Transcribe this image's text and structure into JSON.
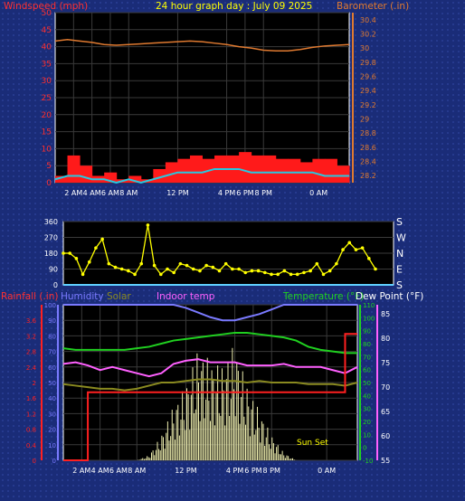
{
  "colors": {
    "wind_avg": "#28c8e0",
    "wind_gust": "#ff1a1a",
    "barometer": "#e07a30",
    "direction": "#ffff00",
    "rain": "#ff2020",
    "humidity": "#7a7aff",
    "solar": "#8a8a20",
    "indoor": "#ff60ff",
    "temperature": "#20d020",
    "dewpoint": "#ffffff",
    "label_red": "#ff3030",
    "label_yellow": "#ffff00"
  },
  "chart_data": [
    {
      "type": "line",
      "title": "24 hour graph day : July 09 2025",
      "ylabel": "Windspeed (mph)",
      "y2label": "Barometer (.in)",
      "ylim": [
        0,
        50
      ],
      "y2lim": [
        28.1,
        30.5
      ],
      "yticks": [
        "0",
        "5",
        "10",
        "15",
        "20",
        "25",
        "30",
        "35",
        "40",
        "45",
        "50"
      ],
      "y2ticks": [
        "28.2",
        "28.4",
        "28.6",
        "28.8",
        "29",
        "29.2",
        "29.4",
        "29.6",
        "29.8",
        "30",
        "30.2",
        "30.4"
      ],
      "xlabels": [
        "2 AM",
        "4 AM",
        "6 AM",
        "8 AM",
        "12 PM",
        "4 PM",
        "6 PM",
        "8 PM",
        "0 AM"
      ],
      "x": [
        0,
        1,
        2,
        3,
        4,
        5,
        6,
        7,
        8,
        9,
        10,
        11,
        12,
        13,
        14,
        15,
        16,
        17,
        18,
        19,
        20,
        21,
        22,
        23,
        24
      ],
      "series": [
        {
          "key": "gust",
          "values": [
            2,
            8,
            5,
            2,
            3,
            1,
            2,
            1,
            4,
            6,
            7,
            8,
            7,
            8,
            8,
            9,
            8,
            8,
            7,
            7,
            6,
            7,
            7,
            5,
            4
          ]
        },
        {
          "key": "avg",
          "values": [
            1,
            2,
            2,
            1,
            1,
            0,
            1,
            0,
            1,
            2,
            3,
            3,
            3,
            4,
            4,
            4,
            3,
            3,
            3,
            3,
            3,
            3,
            2,
            2,
            2
          ]
        },
        {
          "key": "baro",
          "values": [
            30.1,
            30.12,
            30.1,
            30.08,
            30.05,
            30.04,
            30.05,
            30.06,
            30.07,
            30.08,
            30.09,
            30.1,
            30.09,
            30.07,
            30.05,
            30.02,
            30.0,
            29.97,
            29.96,
            29.96,
            29.98,
            30.01,
            30.03,
            30.04,
            30.05
          ]
        }
      ]
    },
    {
      "type": "scatter",
      "ylabel": "",
      "ylim": [
        0,
        360
      ],
      "yticks": [
        "0",
        "90",
        "180",
        "270",
        "360"
      ],
      "compass": [
        "S",
        "E",
        "N",
        "W",
        "S"
      ],
      "xlabels": [],
      "series": [
        {
          "key": "dir",
          "x": [
            0,
            0.5,
            1,
            1.5,
            2,
            2.5,
            3,
            3.5,
            4,
            4.5,
            5,
            5.5,
            6,
            6.5,
            7,
            7.5,
            8,
            8.5,
            9,
            9.5,
            10,
            10.5,
            11,
            11.5,
            12,
            12.5,
            13,
            13.5,
            14,
            14.5,
            15,
            15.5,
            16,
            16.5,
            17,
            17.5,
            18,
            18.5,
            19,
            19.5,
            20,
            20.5,
            21,
            21.5,
            22,
            22.5,
            23,
            23.5,
            24
          ],
          "values": [
            180,
            180,
            150,
            60,
            130,
            210,
            260,
            120,
            100,
            90,
            80,
            60,
            120,
            340,
            110,
            60,
            90,
            70,
            120,
            110,
            90,
            80,
            110,
            100,
            80,
            120,
            90,
            90,
            70,
            80,
            80,
            70,
            60,
            60,
            80,
            60,
            60,
            70,
            80,
            120,
            60,
            80,
            120,
            200,
            240,
            200,
            210,
            150,
            90
          ]
        }
      ]
    },
    {
      "type": "line",
      "ylabels": [
        "Rainfall (.in)",
        "Humidity",
        "Solar",
        "Indoor temp",
        "Temperature (°F)",
        "Dew Point (°F)"
      ],
      "ylim": [
        0,
        100
      ],
      "yticks_humidity": [
        "0",
        "10",
        "20",
        "30",
        "40",
        "50",
        "60",
        "70",
        "80",
        "90",
        "100"
      ],
      "yticks_rain": [
        "0",
        "0.4",
        "0.8",
        "1.2",
        "1.6",
        "2",
        "2.4",
        "2.8",
        "3.2",
        "3.6"
      ],
      "yticks_temp": [
        "-10",
        "0",
        "10",
        "20",
        "30",
        "40",
        "50",
        "60",
        "70",
        "80",
        "90",
        "100",
        "110"
      ],
      "yticks_dew": [
        "55",
        "60",
        "65",
        "70",
        "75",
        "80",
        "85"
      ],
      "xlabels": [
        "2 AM",
        "4 AM",
        "6 AM",
        "8 AM",
        "12 PM",
        "4 PM",
        "6 PM",
        "8 PM",
        "0 AM"
      ],
      "annotation": "Sun Set",
      "x": [
        0,
        1,
        2,
        3,
        4,
        5,
        6,
        7,
        8,
        9,
        10,
        11,
        12,
        13,
        14,
        15,
        16,
        17,
        18,
        19,
        20,
        21,
        22,
        23,
        24
      ],
      "series": [
        {
          "key": "rain",
          "values": [
            0,
            0,
            1.75,
            1.75,
            1.75,
            1.75,
            1.75,
            1.75,
            1.75,
            1.75,
            1.75,
            1.75,
            1.75,
            1.75,
            1.75,
            1.75,
            1.75,
            1.75,
            1.75,
            1.75,
            1.75,
            1.75,
            1.75,
            3.25,
            3.25
          ]
        },
        {
          "key": "humidity",
          "values": [
            100,
            100,
            100,
            100,
            100,
            100,
            100,
            100,
            100,
            100,
            98,
            95,
            92,
            90,
            90,
            92,
            94,
            97,
            100,
            100,
            100,
            100,
            100,
            100,
            100
          ]
        },
        {
          "key": "temp",
          "values": [
            72,
            71,
            71,
            71,
            71,
            71,
            72,
            73,
            75,
            77,
            78,
            79,
            80,
            81,
            82,
            82,
            81,
            80,
            79,
            77,
            73,
            71,
            70,
            69,
            69
          ]
        },
        {
          "key": "indoor",
          "values": [
            62,
            63,
            61,
            58,
            60,
            58,
            56,
            54,
            56,
            62,
            64,
            65,
            63,
            63,
            63,
            61,
            61,
            61,
            62,
            60,
            60,
            60,
            58,
            56,
            60
          ]
        },
        {
          "key": "solarline",
          "values": [
            49,
            48,
            47,
            46,
            46,
            45,
            46,
            48,
            50,
            50,
            51,
            52,
            52,
            51,
            51,
            50,
            51,
            50,
            50,
            50,
            49,
            49,
            49,
            48,
            50
          ]
        },
        {
          "key": "solar",
          "values": [
            0,
            0,
            0,
            0,
            0,
            0,
            0,
            2,
            10,
            22,
            30,
            45,
            40,
            38,
            47,
            30,
            20,
            10,
            3,
            0,
            0,
            0,
            0,
            0,
            0
          ]
        }
      ]
    }
  ]
}
